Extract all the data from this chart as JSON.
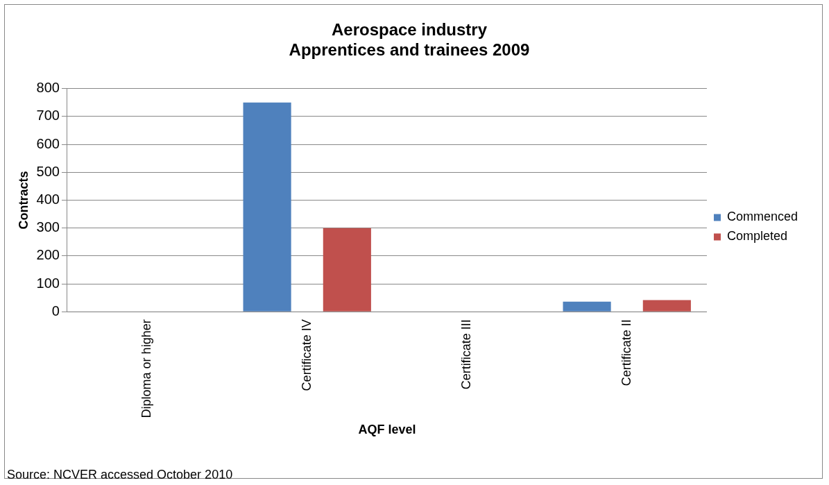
{
  "chart_data": {
    "type": "bar",
    "title": [
      "Aerospace industry",
      "Apprentices and trainees 2009"
    ],
    "xlabel": "AQF level",
    "ylabel": "Contracts",
    "categories": [
      "Diploma or higher",
      "Certificate IV",
      "Certificate III",
      "Certificate II"
    ],
    "series": [
      {
        "name": "Commenced",
        "color": "#4f81bd",
        "values": [
          0,
          750,
          0,
          36
        ]
      },
      {
        "name": "Completed",
        "color": "#c0504d",
        "values": [
          0,
          300,
          0,
          42
        ]
      }
    ],
    "ylim": [
      0,
      800
    ],
    "yticks": [
      0,
      100,
      200,
      300,
      400,
      500,
      600,
      700,
      800
    ],
    "grid": "y",
    "legend": "right",
    "annotations": [
      "Source: NCVER accessed October 2010"
    ]
  }
}
